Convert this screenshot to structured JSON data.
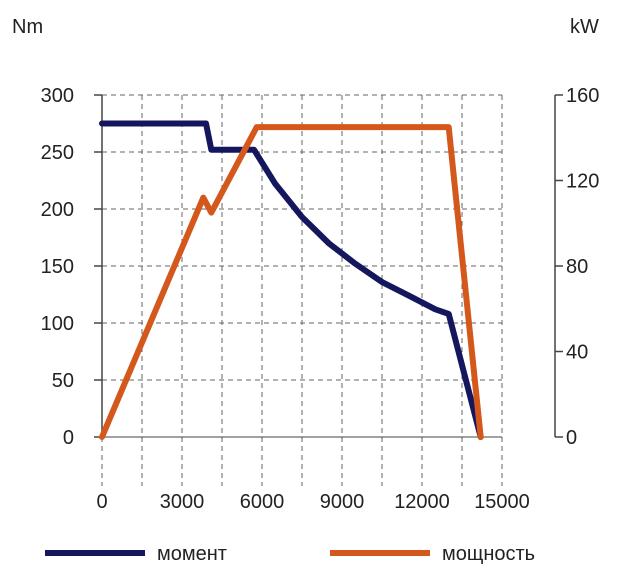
{
  "chart_data": {
    "type": "line",
    "title": "",
    "xlabel": "",
    "y_left_unit": "Nm",
    "y_right_unit": "kW",
    "x_ticks": [
      "0",
      "3000",
      "6000",
      "9000",
      "12000",
      "15000"
    ],
    "y_left_ticks": [
      "0",
      "50",
      "100",
      "150",
      "200",
      "250",
      "300"
    ],
    "y_right_ticks": [
      "0",
      "40",
      "80",
      "120",
      "160"
    ],
    "xlim": [
      0,
      15000
    ],
    "ylim_left": [
      0,
      300
    ],
    "ylim_right": [
      0,
      160
    ],
    "grid": true,
    "legend_position": "bottom",
    "series": [
      {
        "name": "момент",
        "axis": "left",
        "color": "#15175e",
        "x": [
          0,
          3900,
          4100,
          5700,
          6500,
          7500,
          8500,
          9500,
          10500,
          11500,
          12500,
          13000,
          14200
        ],
        "y": [
          275,
          275,
          252,
          252,
          222,
          193,
          170,
          152,
          136,
          124,
          112,
          108,
          0
        ]
      },
      {
        "name": "мощность",
        "axis": "right",
        "color": "#d4581c",
        "x": [
          0,
          3800,
          4100,
          5800,
          13000,
          14200
        ],
        "y": [
          0,
          112,
          105,
          145,
          145,
          0
        ]
      }
    ]
  }
}
